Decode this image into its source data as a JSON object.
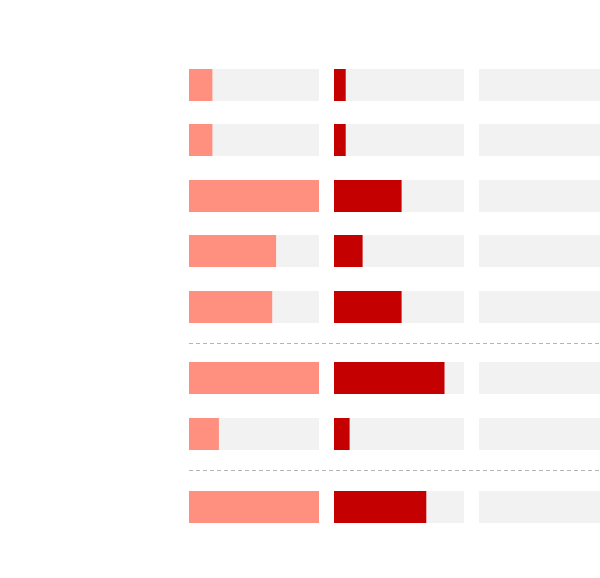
{
  "chart_data": {
    "type": "bar",
    "layout": "small-multiples",
    "colors": {
      "track": "#f2f2f2",
      "series_light": "#ff9080",
      "series_dark": "#c40000",
      "separator": "#b5b5b5"
    },
    "rows": [
      {
        "values": [
          0.18,
          0.09,
          0
        ]
      },
      {
        "values": [
          0.18,
          0.09,
          0
        ]
      },
      {
        "values": [
          1.0,
          0.52,
          0
        ]
      },
      {
        "values": [
          0.67,
          0.22,
          0
        ]
      },
      {
        "values": [
          0.64,
          0.52,
          0
        ]
      },
      {
        "values": [
          1.0,
          0.85,
          0
        ]
      },
      {
        "values": [
          0.23,
          0.12,
          0
        ]
      },
      {
        "values": [
          1.0,
          0.71,
          0
        ]
      }
    ],
    "columns": [
      {
        "fill": "series_light"
      },
      {
        "fill": "series_dark"
      },
      {
        "fill": "series_dark"
      }
    ],
    "group_separators_after_row": [
      4,
      6
    ],
    "value_range": [
      0,
      1
    ],
    "grid": false,
    "legend": "none"
  }
}
